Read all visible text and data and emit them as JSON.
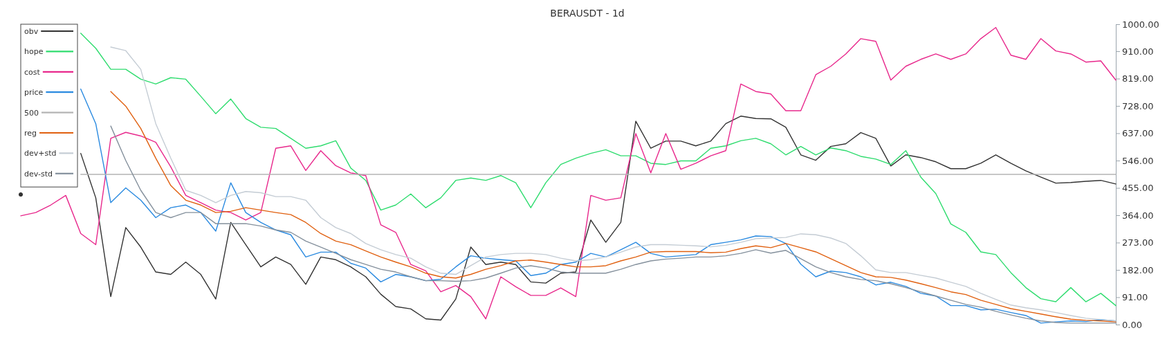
{
  "chart_data": {
    "type": "line",
    "title": "BERAUSDT - 1d",
    "legend": "top left",
    "marker": "none",
    "line_style": "solid",
    "categories": [
      null,
      null,
      null,
      null,
      null,
      null,
      null,
      null,
      null,
      null,
      null,
      null,
      null,
      null,
      null,
      null,
      null,
      null,
      null,
      null,
      null,
      null,
      null,
      null,
      null,
      null,
      null,
      null,
      null,
      null,
      null,
      null,
      null,
      null,
      null,
      null,
      null,
      null,
      null,
      null,
      null,
      null,
      null,
      null,
      null,
      null,
      null,
      null,
      null,
      null,
      null,
      null,
      null,
      null,
      null,
      null,
      null,
      null,
      null,
      null,
      null,
      null,
      null,
      null,
      null,
      null,
      null,
      null,
      null,
      null,
      null,
      null,
      null,
      null
    ],
    "ylim": [
      0,
      1000
    ],
    "yticks": [
      {
        "value": 0,
        "label": "0.00"
      },
      {
        "value": 91,
        "label": "91.00"
      },
      {
        "value": 182,
        "label": "182.00"
      },
      {
        "value": 273,
        "label": "273.00"
      },
      {
        "value": 364,
        "label": "364.00"
      },
      {
        "value": 455,
        "label": "455.00"
      },
      {
        "value": 546,
        "label": "546.00"
      },
      {
        "value": 637,
        "label": "637.00"
      },
      {
        "value": 728,
        "label": "728.00"
      },
      {
        "value": 819,
        "label": "819.00"
      },
      {
        "value": 910,
        "label": "910.00"
      },
      {
        "value": 1000,
        "label": "1000.00"
      }
    ],
    "series": [
      {
        "name": "obv",
        "color": "#333333",
        "values": [
          433,
          null,
          null,
          null,
          570,
          422,
          93,
          323,
          258,
          175,
          167,
          208,
          167,
          85,
          340,
          266,
          192,
          225,
          200,
          134,
          225,
          216,
          192,
          159,
          101,
          60,
          52,
          19,
          15,
          85,
          258,
          200,
          208,
          200,
          142,
          138,
          171,
          175,
          348,
          274,
          340,
          677,
          587,
          611,
          611,
          595,
          611,
          669,
          694,
          686,
          685,
          657,
          565,
          547,
          593,
          602,
          639,
          620,
          528,
          565,
          556,
          542,
          519,
          519,
          537,
          565,
          537,
          512,
          491,
          471,
          473,
          477,
          480,
          468
        ]
      },
      {
        "name": "hope",
        "color": "#2edc6e",
        "values": [
          null,
          null,
          null,
          null,
          970,
          920,
          850,
          850,
          817,
          801,
          822,
          817,
          760,
          702,
          751,
          686,
          657,
          653,
          620,
          587,
          595,
          612,
          521,
          480,
          381,
          398,
          435,
          389,
          422,
          480,
          488,
          480,
          496,
          472,
          389,
          472,
          533,
          554,
          570,
          582,
          562,
          562,
          537,
          533,
          545,
          545,
          587,
          595,
          612,
          620,
          602,
          565,
          593,
          565,
          588,
          579,
          560,
          551,
          533,
          579,
          491,
          436,
          335,
          307,
          242,
          233,
          173,
          123,
          86,
          76,
          123,
          76,
          104,
          63
        ]
      },
      {
        "name": "cost",
        "color": "#e8288c",
        "values": [
          362,
          373,
          398,
          430,
          303,
          266,
          620,
          640,
          628,
          607,
          525,
          430,
          406,
          381,
          373,
          348,
          373,
          587,
          595,
          513,
          579,
          529,
          505,
          496,
          332,
          307,
          200,
          179,
          109,
          130,
          93,
          19,
          159,
          126,
          97,
          97,
          122,
          93,
          430,
          414,
          422,
          636,
          505,
          636,
          517,
          537,
          562,
          579,
          801,
          776,
          768,
          712,
          712,
          832,
          860,
          901,
          952,
          943,
          814,
          860,
          883,
          901,
          883,
          901,
          952,
          989,
          897,
          883,
          952,
          911,
          901,
          874,
          878,
          814
        ]
      },
      {
        "name": "price",
        "color": "#2a8ae0",
        "values": [
          null,
          null,
          null,
          null,
          784,
          669,
          406,
          455,
          414,
          356,
          389,
          398,
          373,
          311,
          472,
          373,
          340,
          315,
          299,
          225,
          241,
          241,
          204,
          188,
          142,
          167,
          159,
          146,
          151,
          192,
          229,
          221,
          216,
          212,
          163,
          171,
          200,
          208,
          237,
          225,
          249,
          274,
          237,
          225,
          229,
          233,
          266,
          274,
          282,
          295,
          293,
          270,
          201,
          159,
          178,
          173,
          159,
          132,
          141,
          127,
          104,
          95,
          63,
          63,
          49,
          51,
          40,
          30,
          5,
          9,
          12,
          10,
          16,
          12
        ]
      },
      {
        "name": "500",
        "color": "#b4b4b4",
        "values": [
          null,
          null,
          null,
          null,
          500,
          500,
          500,
          500,
          500,
          500,
          500,
          500,
          500,
          500,
          500,
          500,
          500,
          500,
          500,
          500,
          500,
          500,
          500,
          500,
          500,
          500,
          500,
          500,
          500,
          500,
          500,
          500,
          500,
          500,
          500,
          500,
          500,
          500,
          500,
          500,
          500,
          500,
          500,
          500,
          500,
          500,
          500,
          500,
          500,
          500,
          500,
          500,
          500,
          500,
          500,
          500,
          500,
          500,
          500,
          500,
          500,
          500,
          500,
          500,
          500,
          500,
          500,
          500,
          500,
          500,
          500,
          500,
          500,
          500
        ]
      },
      {
        "name": "reg",
        "color": "#e06010",
        "values": [
          null,
          null,
          null,
          null,
          null,
          null,
          776,
          727,
          653,
          554,
          463,
          414,
          398,
          373,
          377,
          389,
          381,
          373,
          366,
          340,
          303,
          278,
          266,
          245,
          225,
          208,
          192,
          171,
          159,
          155,
          167,
          184,
          196,
          212,
          215,
          208,
          200,
          192,
          192,
          196,
          212,
          225,
          241,
          243,
          243,
          243,
          239,
          241,
          253,
          262,
          256,
          270,
          256,
          242,
          219,
          196,
          173,
          159,
          157,
          148,
          136,
          123,
          109,
          100,
          81,
          67,
          53,
          44,
          35,
          26,
          18,
          14,
          12,
          9
        ]
      },
      {
        "name": "dev+std",
        "color": "#c4ccd4",
        "values": [
          null,
          null,
          null,
          null,
          null,
          null,
          924,
          912,
          850,
          669,
          554,
          447,
          430,
          406,
          430,
          443,
          439,
          426,
          426,
          414,
          356,
          323,
          303,
          270,
          249,
          233,
          221,
          192,
          171,
          167,
          196,
          225,
          233,
          237,
          237,
          233,
          221,
          212,
          216,
          225,
          241,
          258,
          266,
          266,
          264,
          262,
          259,
          264,
          274,
          286,
          288,
          290,
          302,
          299,
          288,
          270,
          229,
          182,
          173,
          173,
          164,
          155,
          141,
          127,
          104,
          84,
          65,
          56,
          49,
          40,
          30,
          21,
          17,
          12
        ]
      },
      {
        "name": "dev-std",
        "color": "#84909c",
        "values": [
          null,
          null,
          null,
          null,
          null,
          null,
          661,
          546,
          447,
          373,
          356,
          373,
          373,
          336,
          336,
          336,
          328,
          315,
          307,
          278,
          258,
          237,
          216,
          200,
          184,
          175,
          159,
          146,
          146,
          144,
          146,
          155,
          171,
          188,
          196,
          188,
          175,
          171,
          171,
          171,
          184,
          200,
          212,
          218,
          221,
          225,
          225,
          229,
          237,
          249,
          238,
          247,
          219,
          192,
          173,
          159,
          150,
          146,
          136,
          123,
          109,
          95,
          81,
          67,
          58,
          44,
          32,
          21,
          12,
          7,
          5,
          5,
          5,
          5
        ]
      }
    ]
  }
}
